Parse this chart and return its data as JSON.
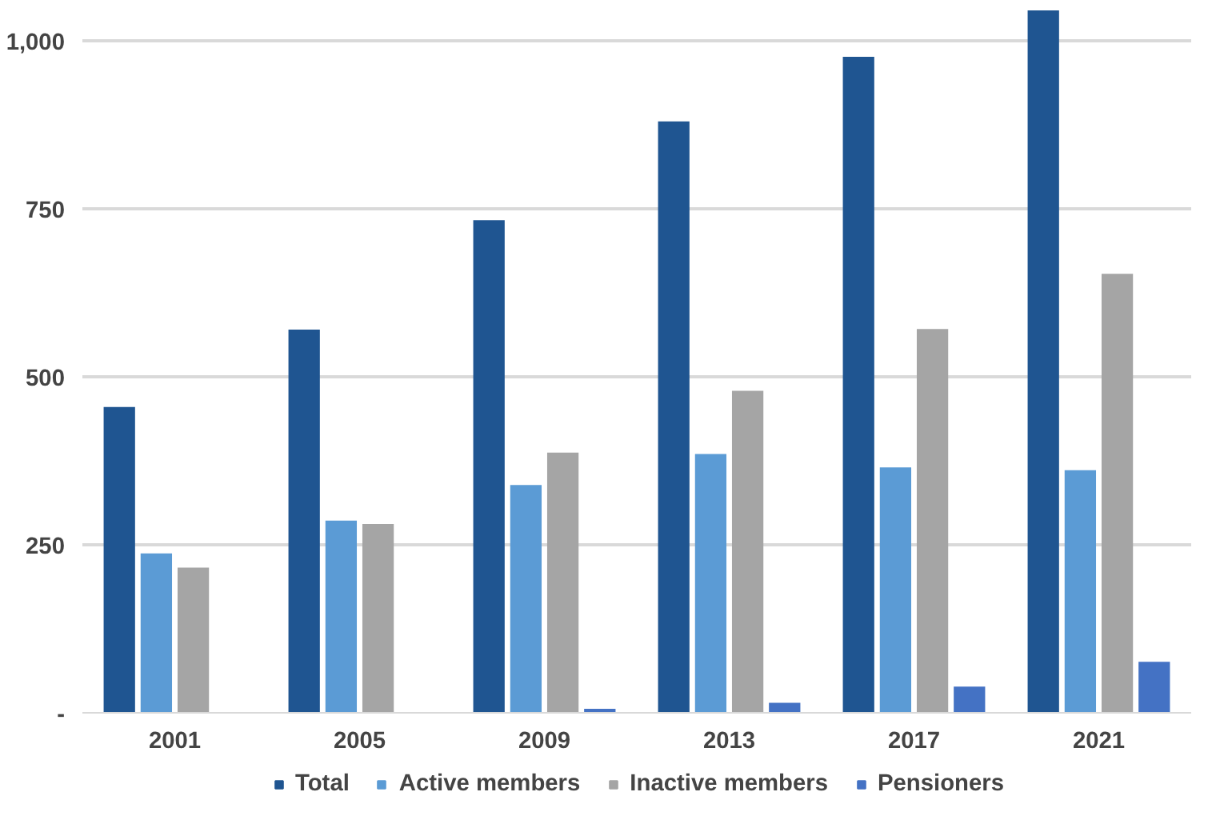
{
  "chart_data": {
    "type": "bar",
    "categories": [
      "2001",
      "2005",
      "2009",
      "2013",
      "2017",
      "2021"
    ],
    "series": [
      {
        "name": "Total",
        "color": "#1f5591",
        "values": [
          455,
          570,
          733,
          880,
          976,
          1045
        ]
      },
      {
        "name": "Active members",
        "color": "#5b9bd5",
        "values": [
          237,
          286,
          339,
          385,
          365,
          361
        ]
      },
      {
        "name": "Inactive members",
        "color": "#a5a5a5",
        "values": [
          216,
          281,
          387,
          479,
          571,
          653
        ]
      },
      {
        "name": "Pensioners",
        "color": "#4472c4",
        "values": [
          0,
          0,
          6,
          15,
          39,
          76
        ]
      }
    ],
    "ylim": [
      0,
      1045
    ],
    "yticks": [
      {
        "value": 0,
        "label": "-"
      },
      {
        "value": 250,
        "label": "250"
      },
      {
        "value": 500,
        "label": "500"
      },
      {
        "value": 750,
        "label": "750"
      },
      {
        "value": 1000,
        "label": "1,000"
      }
    ],
    "grid": "y",
    "legend": "bottom"
  }
}
